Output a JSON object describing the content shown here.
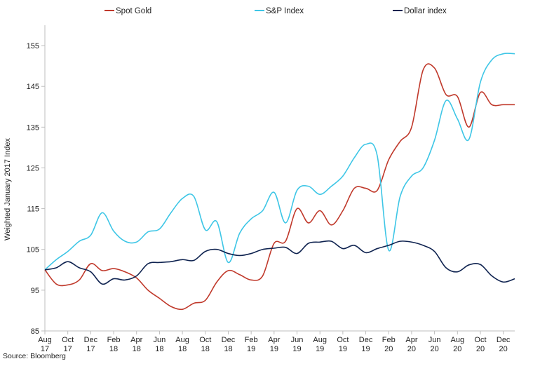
{
  "chart_data": {
    "type": "line",
    "title": "",
    "xlabel": "",
    "ylabel": "Weighted January 2017 Index",
    "ylim": [
      85,
      160
    ],
    "yticks": [
      85,
      95,
      105,
      115,
      125,
      135,
      145,
      155
    ],
    "grid": false,
    "legend_position": "top",
    "x": [
      "2017-08-01",
      "2017-09-01",
      "2017-10-01",
      "2017-11-01",
      "2017-12-01",
      "2018-01-01",
      "2018-02-01",
      "2018-03-01",
      "2018-04-01",
      "2018-05-01",
      "2018-06-01",
      "2018-07-01",
      "2018-08-01",
      "2018-09-01",
      "2018-10-01",
      "2018-11-01",
      "2018-12-01",
      "2019-01-01",
      "2019-02-01",
      "2019-03-01",
      "2019-04-01",
      "2019-05-01",
      "2019-06-01",
      "2019-07-01",
      "2019-08-01",
      "2019-09-01",
      "2019-10-01",
      "2019-11-01",
      "2019-12-01",
      "2020-01-01",
      "2020-02-01",
      "2020-03-01",
      "2020-04-01",
      "2020-05-01",
      "2020-06-01",
      "2020-07-01",
      "2020-08-01",
      "2020-09-01",
      "2020-10-01",
      "2020-11-01",
      "2020-12-01",
      "2021-01-01"
    ],
    "xtick_labels": [
      {
        "month": "Aug",
        "year": "17"
      },
      {
        "month": "Oct",
        "year": "17"
      },
      {
        "month": "Dec",
        "year": "17"
      },
      {
        "month": "Feb",
        "year": "18"
      },
      {
        "month": "Apr",
        "year": "18"
      },
      {
        "month": "Jun",
        "year": "18"
      },
      {
        "month": "Aug",
        "year": "18"
      },
      {
        "month": "Oct",
        "year": "18"
      },
      {
        "month": "Dec",
        "year": "18"
      },
      {
        "month": "Feb",
        "year": "19"
      },
      {
        "month": "Apr",
        "year": "19"
      },
      {
        "month": "Jun",
        "year": "19"
      },
      {
        "month": "Aug",
        "year": "19"
      },
      {
        "month": "Oct",
        "year": "19"
      },
      {
        "month": "Dec",
        "year": "19"
      },
      {
        "month": "Feb",
        "year": "20"
      },
      {
        "month": "Apr",
        "year": "20"
      },
      {
        "month": "Jun",
        "year": "20"
      },
      {
        "month": "Aug",
        "year": "20"
      },
      {
        "month": "Oct",
        "year": "20"
      },
      {
        "month": "Dec",
        "year": "20"
      }
    ],
    "series": [
      {
        "name": "Spot Gold",
        "color": "#c0392b",
        "values": [
          100,
          96.5,
          96.3,
          97.5,
          101.5,
          99.8,
          100.3,
          99.5,
          98,
          95,
          93,
          91,
          90.3,
          91.8,
          92.5,
          97,
          99.8,
          98.8,
          97.5,
          98.5,
          106.5,
          107,
          115,
          111.5,
          114.5,
          111,
          114.5,
          120,
          120,
          119.5,
          127,
          131.5,
          135,
          149,
          149.5,
          143,
          142.5,
          135,
          143.5,
          140.5,
          140.5,
          140.5
        ]
      },
      {
        "name": "S&P Index",
        "color": "#3ec6e6",
        "values": [
          100,
          102.5,
          104.5,
          107,
          108.5,
          114,
          109.5,
          107,
          106.8,
          109.3,
          110,
          114,
          117.5,
          118,
          109.8,
          111.8,
          101.8,
          109,
          112.5,
          114.5,
          119,
          111.5,
          119.5,
          120.5,
          118.5,
          120.5,
          123,
          127.5,
          130.8,
          128,
          104.8,
          118,
          123,
          125,
          131.8,
          141.5,
          137,
          132,
          146,
          151.5,
          153,
          153
        ]
      },
      {
        "name": "Dollar index",
        "color": "#0f2350",
        "values": [
          100,
          100.5,
          102,
          100.5,
          99.5,
          96.5,
          97.8,
          97.5,
          98.5,
          101.5,
          101.8,
          102,
          102.5,
          102.3,
          104.5,
          105,
          104,
          103.5,
          104,
          105,
          105.3,
          105.5,
          104,
          106.5,
          106.8,
          107,
          105.2,
          106,
          104.2,
          105.2,
          106,
          107,
          106.8,
          106,
          104.5,
          100.5,
          99.5,
          101.2,
          101.3,
          98.5,
          97,
          97.8
        ]
      }
    ]
  },
  "source_text": "Source: Bloomberg"
}
